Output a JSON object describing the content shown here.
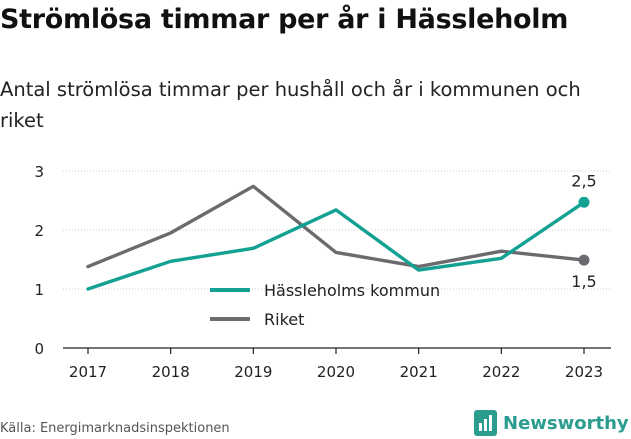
{
  "header": {
    "title": "Strömlösa timmar per år i Hässleholm",
    "subtitle": "Antal strömlösa timmar per hushåll och år i kommunen och riket"
  },
  "footer": {
    "source": "Källa: Energimarknadsinspektionen",
    "brand": "Newsworthy"
  },
  "colors": {
    "hassleholm": "#12a193",
    "riket": "#6b6b6f",
    "axis": "#222222",
    "grid": "#cccccc"
  },
  "chart_data": {
    "type": "line",
    "x": [
      "2017",
      "2018",
      "2019",
      "2020",
      "2021",
      "2022",
      "2023"
    ],
    "y_ticks": [
      "0",
      "1",
      "2",
      "3"
    ],
    "ylim": [
      0,
      3
    ],
    "grid": "horizontal",
    "legend_position": "center",
    "series": [
      {
        "name": "Hässleholms kommun",
        "color": "#12a193",
        "values": [
          1.0,
          1.47,
          1.69,
          2.34,
          1.32,
          1.52,
          2.47
        ],
        "end_label": "2,5"
      },
      {
        "name": "Riket",
        "color": "#6b6b6f",
        "values": [
          1.38,
          1.95,
          2.74,
          1.62,
          1.38,
          1.64,
          1.49
        ],
        "end_label": "1,5"
      }
    ]
  }
}
